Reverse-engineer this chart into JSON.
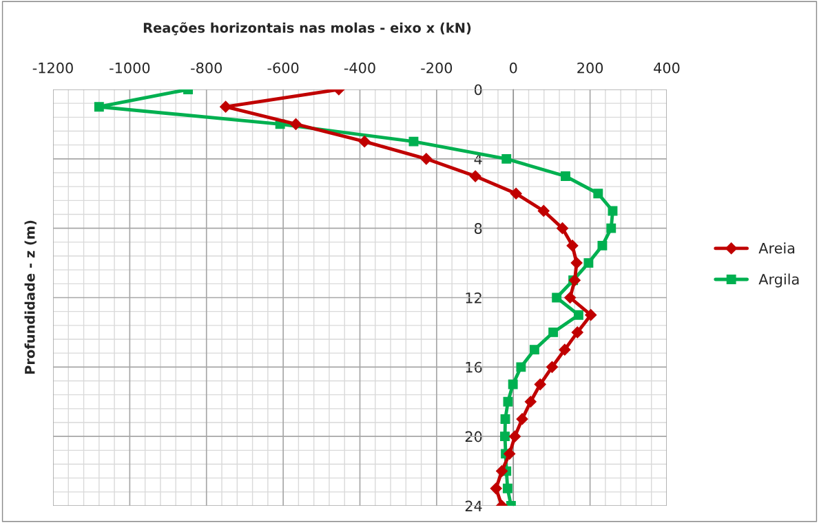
{
  "chart_data": {
    "type": "line",
    "title": "Reações horizontais nas molas - eixo x (kN)",
    "ylabel": "Profundidade - z (m)",
    "x": [
      0,
      1,
      2,
      3,
      4,
      5,
      6,
      7,
      8,
      9,
      10,
      11,
      12,
      13,
      14,
      15,
      16,
      17,
      18,
      19,
      20,
      21,
      22,
      23,
      24
    ],
    "orientation": "horizontal",
    "series": [
      {
        "name": "Areia",
        "color": "#c00000",
        "marker": "diamond",
        "values": [
          -455,
          -750,
          -567,
          -388,
          -227,
          -99,
          7,
          79,
          128,
          154,
          165,
          160,
          148,
          202,
          167,
          134,
          101,
          70,
          45,
          23,
          4,
          -10,
          -30,
          -45,
          -30
        ]
      },
      {
        "name": "Argila",
        "color": "#00b050",
        "marker": "square",
        "values": [
          -848,
          -1080,
          -608,
          -260,
          -18,
          136,
          221,
          259,
          255,
          232,
          196,
          156,
          113,
          170,
          104,
          55,
          20,
          -1,
          -14,
          -21,
          -22,
          -20,
          -18,
          -15,
          -6
        ]
      }
    ],
    "xlim": [
      -1200,
      400
    ],
    "xticks": [
      -1200,
      -1000,
      -800,
      -600,
      -400,
      -200,
      0,
      200,
      400
    ],
    "ylim": [
      24,
      0
    ],
    "yticks": [
      0,
      4,
      8,
      12,
      16,
      20,
      24
    ],
    "grid": true,
    "legend": "right",
    "line_style": "solid"
  }
}
